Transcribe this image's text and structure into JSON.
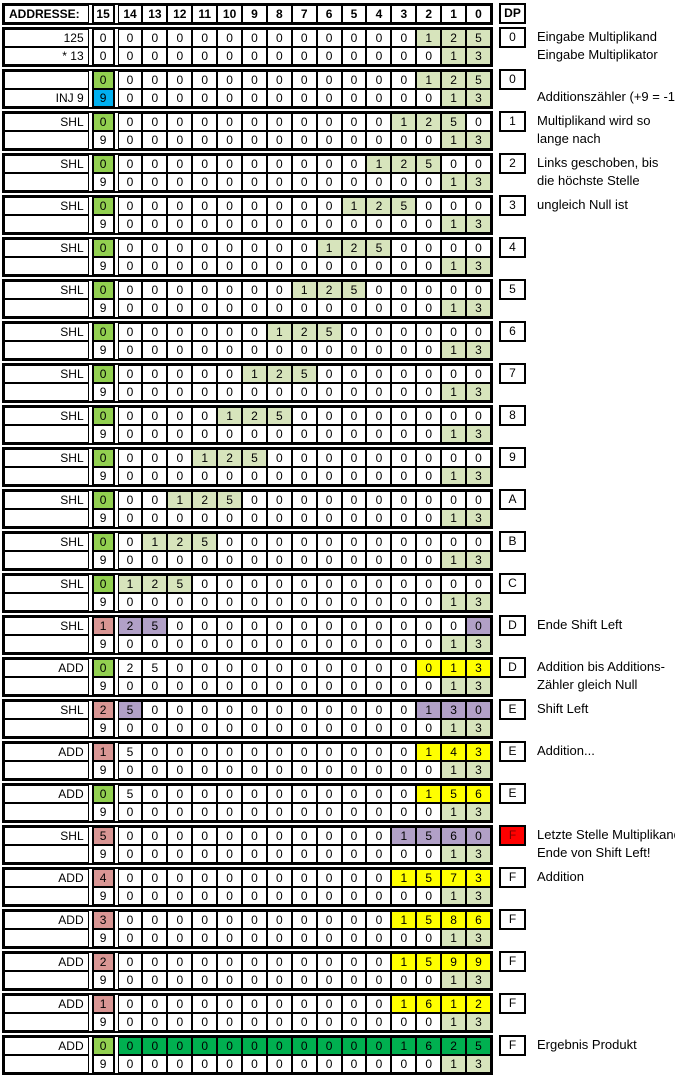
{
  "palette": {
    "g": "#92D050",
    "b": "#00B0F0",
    "l": "#D7E4BC",
    "p": "#B1A0C7",
    "k": "#D99694",
    "y": "#FFFF00",
    "d": "#00B050",
    "r": "#FF0000",
    "dp_red_text": "#7F0000",
    "grid_line": "#000000"
  },
  "header": {
    "label": "ADDRESSE:",
    "cols": [
      "15",
      "14",
      "13",
      "12",
      "11",
      "10",
      "9",
      "8",
      "7",
      "6",
      "5",
      "4",
      "3",
      "2",
      "1",
      "0"
    ],
    "dp": "DP"
  },
  "blocks": [
    {
      "rows": [
        {
          "label": "125",
          "v": "0000000000000125",
          "hl": ".............lll",
          "dp": "0",
          "note": "Eingabe Multiplikand"
        },
        {
          "label": "* 13",
          "v": "0000000000000013",
          "hl": "..............ll",
          "note": "Eingabe Multiplikator"
        }
      ]
    },
    {
      "rows": [
        {
          "label": "",
          "v": "0000000000000125",
          "hl": "g............lll",
          "dp": "0"
        },
        {
          "label": "INJ 9",
          "v": "9000000000000013",
          "hl": "b.............ll",
          "note": "Additionszähler (+9 = -1)"
        }
      ]
    },
    {
      "rows": [
        {
          "label": "SHL",
          "v": "0000000000001250",
          "hl": "g...........lll.",
          "dp": "1",
          "note": "Multiplikand wird so"
        },
        {
          "label": "",
          "v": "9000000000000013",
          "hl": "..............ll",
          "note": "lange nach"
        }
      ]
    },
    {
      "rows": [
        {
          "label": "SHL",
          "v": "0000000000012500",
          "hl": "g..........lll..",
          "dp": "2",
          "note": "Links geschoben, bis"
        },
        {
          "label": "",
          "v": "9000000000000013",
          "hl": "..............ll",
          "note": "die höchste Stelle"
        }
      ]
    },
    {
      "rows": [
        {
          "label": "SHL",
          "v": "0000000000125000",
          "hl": "g.........lll...",
          "dp": "3",
          "note": "ungleich Null ist"
        },
        {
          "label": "",
          "v": "9000000000000013",
          "hl": "..............ll"
        }
      ]
    },
    {
      "rows": [
        {
          "label": "SHL",
          "v": "0000000001250000",
          "hl": "g........lll....",
          "dp": "4"
        },
        {
          "label": "",
          "v": "9000000000000013",
          "hl": "..............ll"
        }
      ]
    },
    {
      "rows": [
        {
          "label": "SHL",
          "v": "0000000012500000",
          "hl": "g.......lll.....",
          "dp": "5"
        },
        {
          "label": "",
          "v": "9000000000000013",
          "hl": "..............ll"
        }
      ]
    },
    {
      "rows": [
        {
          "label": "SHL",
          "v": "0000000125000000",
          "hl": "g......lll......",
          "dp": "6"
        },
        {
          "label": "",
          "v": "9000000000000013",
          "hl": "..............ll"
        }
      ]
    },
    {
      "rows": [
        {
          "label": "SHL",
          "v": "0000001250000000",
          "hl": "g.....lll.......",
          "dp": "7"
        },
        {
          "label": "",
          "v": "9000000000000013",
          "hl": "..............ll"
        }
      ]
    },
    {
      "rows": [
        {
          "label": "SHL",
          "v": "0000012500000000",
          "hl": "g....lll........",
          "dp": "8"
        },
        {
          "label": "",
          "v": "9000000000000013",
          "hl": "..............ll"
        }
      ]
    },
    {
      "rows": [
        {
          "label": "SHL",
          "v": "0000125000000000",
          "hl": "g...lll.........",
          "dp": "9"
        },
        {
          "label": "",
          "v": "9000000000000013",
          "hl": "..............ll"
        }
      ]
    },
    {
      "rows": [
        {
          "label": "SHL",
          "v": "0001250000000000",
          "hl": "g..lll..........",
          "dp": "A"
        },
        {
          "label": "",
          "v": "9000000000000013",
          "hl": "..............ll"
        }
      ]
    },
    {
      "rows": [
        {
          "label": "SHL",
          "v": "0012500000000000",
          "hl": "g.lll...........",
          "dp": "B"
        },
        {
          "label": "",
          "v": "9000000000000013",
          "hl": "..............ll"
        }
      ]
    },
    {
      "rows": [
        {
          "label": "SHL",
          "v": "0125000000000000",
          "hl": "glll............",
          "dp": "C"
        },
        {
          "label": "",
          "v": "9000000000000013",
          "hl": "..............ll"
        }
      ]
    },
    {
      "rows": [
        {
          "label": "SHL",
          "v": "1250000000000000",
          "hl": "kpp............p",
          "dp": "D",
          "note": "Ende Shift Left"
        },
        {
          "label": "",
          "v": "9000000000000013",
          "hl": "..............ll"
        }
      ]
    },
    {
      "rows": [
        {
          "label": "ADD",
          "v": "0250000000000013",
          "hl": "g............yyy",
          "dp": "D",
          "note": "Addition bis Additions-"
        },
        {
          "label": "",
          "v": "9000000000000013",
          "hl": "..............ll",
          "note": "Zähler gleich Null"
        }
      ]
    },
    {
      "rows": [
        {
          "label": "SHL",
          "v": "2500000000000130",
          "hl": "kp...........ppp",
          "dp": "E",
          "note": "Shift Left"
        },
        {
          "label": "",
          "v": "9000000000000013",
          "hl": "..............ll"
        }
      ]
    },
    {
      "rows": [
        {
          "label": "ADD",
          "v": "1500000000000143",
          "hl": "k............yyy",
          "dp": "E",
          "note": "Addition..."
        },
        {
          "label": "",
          "v": "9000000000000013",
          "hl": "..............ll"
        }
      ]
    },
    {
      "rows": [
        {
          "label": "ADD",
          "v": "0500000000000156",
          "hl": "g............yyy",
          "dp": "E"
        },
        {
          "label": "",
          "v": "9000000000000013",
          "hl": "..............ll"
        }
      ]
    },
    {
      "rows": [
        {
          "label": "SHL",
          "v": "5000000000001560",
          "hl": "k...........pppp",
          "dp": "F",
          "dp_bg": "r",
          "note": "Letzte Stelle Multiplikand"
        },
        {
          "label": "",
          "v": "9000000000000013",
          "hl": "..............ll",
          "note": "Ende von Shift Left!"
        }
      ]
    },
    {
      "rows": [
        {
          "label": "ADD",
          "v": "4000000000001573",
          "hl": "k...........yyyy",
          "dp": "F",
          "note": "Addition"
        },
        {
          "label": "",
          "v": "9000000000000013",
          "hl": "..............ll"
        }
      ]
    },
    {
      "rows": [
        {
          "label": "ADD",
          "v": "3000000000001586",
          "hl": "k...........yyyy",
          "dp": "F"
        },
        {
          "label": "",
          "v": "9000000000000013",
          "hl": "..............ll"
        }
      ]
    },
    {
      "rows": [
        {
          "label": "ADD",
          "v": "2000000000001599",
          "hl": "k...........yyyy",
          "dp": "F"
        },
        {
          "label": "",
          "v": "9000000000000013",
          "hl": "..............ll"
        }
      ]
    },
    {
      "rows": [
        {
          "label": "ADD",
          "v": "1000000000001612",
          "hl": "k...........yyyy",
          "dp": "F"
        },
        {
          "label": "",
          "v": "9000000000000013",
          "hl": "..............ll"
        }
      ]
    },
    {
      "rows": [
        {
          "label": "ADD",
          "v": "0000000000001625",
          "hl": "gddddddddddddddd",
          "dp": "F",
          "note": "Ergebnis Produkt"
        },
        {
          "label": "",
          "v": "9000000000000013",
          "hl": "..............ll"
        }
      ]
    }
  ]
}
